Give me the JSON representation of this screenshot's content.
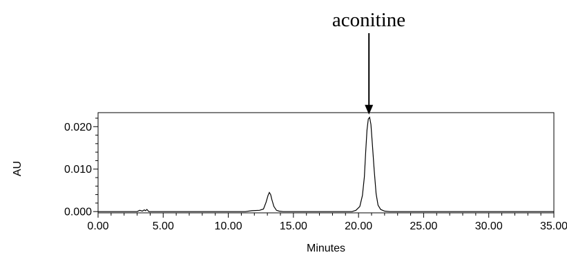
{
  "chart_data": {
    "type": "line",
    "title": "",
    "xlabel": "Minutes",
    "ylabel": "AU",
    "xlim": [
      0,
      35
    ],
    "ylim": [
      -0.0003,
      0.0233
    ],
    "x_ticks": [
      "0.00",
      "5.00",
      "10.00",
      "15.00",
      "20.00",
      "25.00",
      "30.00",
      "35.00"
    ],
    "y_ticks": [
      "0.000",
      "0.010",
      "0.020"
    ],
    "grid": false,
    "legend": "none",
    "line_color": "#000000",
    "annotation": {
      "text": "aconitine",
      "x": 20.8,
      "y": 0.0222
    },
    "series": [
      {
        "x": [
          0,
          3.0,
          3.2,
          3.4,
          3.55,
          3.65,
          3.75,
          3.9,
          11.3,
          11.8,
          12.4,
          12.7,
          12.9,
          13.05,
          13.15,
          13.25,
          13.35,
          13.5,
          13.7,
          13.9,
          14.2,
          19.5,
          19.8,
          20.1,
          20.3,
          20.45,
          20.55,
          20.65,
          20.75,
          20.85,
          20.95,
          21.05,
          21.2,
          21.35,
          21.5,
          21.7,
          22.0,
          22.4,
          35.0
        ],
        "y": [
          0,
          0,
          0.0003,
          0.0001,
          0.0004,
          0.0002,
          0.0005,
          0,
          0,
          0.0002,
          0.0003,
          0.0006,
          0.0022,
          0.0038,
          0.0045,
          0.004,
          0.0028,
          0.0012,
          0.0003,
          0.0001,
          0,
          0,
          0.0003,
          0.0012,
          0.0038,
          0.0082,
          0.014,
          0.0192,
          0.0218,
          0.0222,
          0.0205,
          0.0165,
          0.0098,
          0.0042,
          0.0015,
          0.0005,
          0.0001,
          0,
          0
        ]
      }
    ]
  }
}
